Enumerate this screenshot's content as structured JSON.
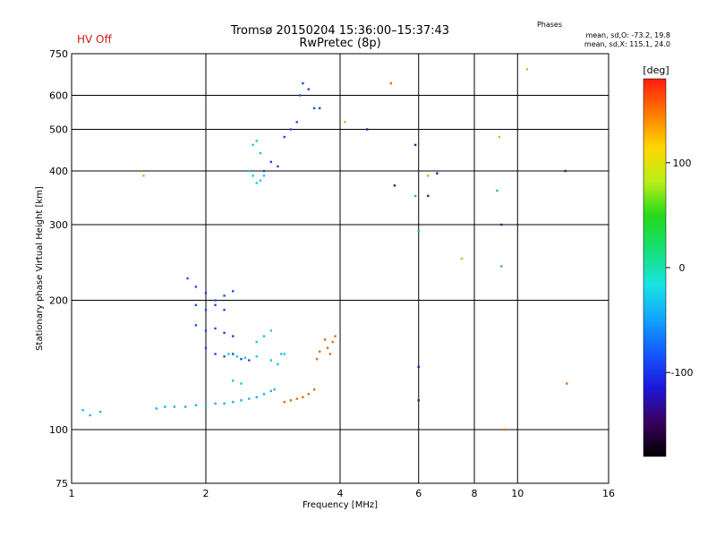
{
  "header": {
    "status": "HV Off",
    "title_line1": "Tromsø 20150204 15:36:00–15:37:43",
    "title_line2": "RwPretec (8p)",
    "phases_title": "Phases",
    "phases_o": "mean, sd,O: -73.2, 19.8",
    "phases_x": "mean, sd,X: 115.1, 24.0"
  },
  "colors": {
    "status": "#d11a1a",
    "grid": "#000000",
    "colormap": [
      "#000000",
      "#3b005e",
      "#1d17d9",
      "#1458ff",
      "#12a4ff",
      "#19e3e3",
      "#15e07a",
      "#24d91a",
      "#b8ee1a",
      "#ffd600",
      "#ff7a00",
      "#ff1b0e"
    ]
  },
  "chart_data": {
    "type": "scatter",
    "title": "Tromsø 20150204 15:36:00–15:37:43",
    "subtitle": "RwPretec (8p)",
    "xlabel": "Frequency [MHz]",
    "ylabel": "Stationary phase Virtual Height [km]",
    "x_scale": "log",
    "y_scale": "log",
    "xlim": [
      1,
      16
    ],
    "ylim": [
      75,
      750
    ],
    "x_ticks": [
      1,
      2,
      4,
      6,
      8,
      10,
      16
    ],
    "y_ticks": [
      75,
      100,
      200,
      300,
      400,
      500,
      600,
      750
    ],
    "grid_x": [
      2,
      4,
      6,
      8,
      10
    ],
    "grid_y": [
      100,
      200,
      300,
      400,
      500,
      600
    ],
    "colorbar": {
      "label": "[deg]",
      "ticks": [
        100,
        0,
        -100
      ],
      "range": [
        -180,
        180
      ]
    },
    "series": [
      {
        "name": "",
        "color": "#16b4ee",
        "points": [
          [
            1.06,
            111
          ],
          [
            1.1,
            108
          ],
          [
            1.16,
            110
          ],
          [
            1.55,
            112
          ],
          [
            1.62,
            113
          ],
          [
            1.7,
            113
          ],
          [
            1.8,
            113
          ],
          [
            1.9,
            114
          ],
          [
            2.0,
            114
          ],
          [
            2.1,
            115
          ],
          [
            2.2,
            115
          ],
          [
            2.3,
            116
          ],
          [
            2.4,
            117
          ],
          [
            2.5,
            118
          ],
          [
            2.6,
            119
          ],
          [
            2.7,
            121
          ],
          [
            2.8,
            123
          ],
          [
            2.85,
            124
          ]
        ]
      },
      {
        "name": "",
        "color": "#17c7e0",
        "points": [
          [
            2.5,
            400
          ],
          [
            2.55,
            390
          ],
          [
            2.6,
            375
          ],
          [
            2.65,
            380
          ],
          [
            2.7,
            390
          ],
          [
            2.55,
            460
          ],
          [
            2.6,
            470
          ],
          [
            2.65,
            440
          ],
          [
            2.25,
            150
          ],
          [
            2.35,
            148
          ],
          [
            2.45,
            147
          ],
          [
            2.6,
            148
          ],
          [
            2.8,
            145
          ],
          [
            2.9,
            142
          ],
          [
            3.0,
            150
          ],
          [
            2.6,
            160
          ],
          [
            2.7,
            165
          ],
          [
            2.8,
            170
          ],
          [
            2.95,
            150
          ],
          [
            2.3,
            130
          ],
          [
            2.4,
            128
          ]
        ]
      },
      {
        "name": "",
        "color": "#2147e3",
        "points": [
          [
            1.82,
            225
          ],
          [
            1.9,
            215
          ],
          [
            2.0,
            208
          ],
          [
            2.1,
            200
          ],
          [
            2.2,
            205
          ],
          [
            2.3,
            210
          ],
          [
            1.9,
            195
          ],
          [
            2.0,
            190
          ],
          [
            2.1,
            195
          ],
          [
            2.2,
            190
          ],
          [
            1.9,
            175
          ],
          [
            2.0,
            170
          ],
          [
            2.1,
            172
          ],
          [
            2.2,
            168
          ],
          [
            2.3,
            165
          ],
          [
            2.0,
            155
          ],
          [
            2.1,
            150
          ],
          [
            2.2,
            148
          ],
          [
            2.3,
            150
          ],
          [
            2.4,
            146
          ],
          [
            2.5,
            145
          ],
          [
            2.7,
            400
          ],
          [
            2.8,
            420
          ],
          [
            2.9,
            410
          ],
          [
            3.0,
            480
          ],
          [
            3.1,
            500
          ],
          [
            3.2,
            520
          ],
          [
            3.25,
            600
          ],
          [
            3.3,
            640
          ],
          [
            3.4,
            620
          ],
          [
            3.5,
            560
          ],
          [
            3.6,
            560
          ]
        ]
      },
      {
        "name": "",
        "color": "#e06a12",
        "points": [
          [
            3.0,
            116
          ],
          [
            3.1,
            117
          ],
          [
            3.2,
            118
          ],
          [
            3.3,
            119
          ],
          [
            3.4,
            121
          ],
          [
            3.5,
            124
          ],
          [
            3.55,
            146
          ],
          [
            3.6,
            152
          ],
          [
            3.7,
            162
          ],
          [
            3.75,
            155
          ],
          [
            3.8,
            150
          ],
          [
            3.85,
            160
          ],
          [
            3.9,
            165
          ]
        ]
      },
      {
        "name": "",
        "color": "#d4b81a",
        "points": [
          [
            1.45,
            390
          ],
          [
            4.1,
            520
          ],
          [
            6.3,
            390
          ],
          [
            7.5,
            250
          ],
          [
            9.1,
            480
          ],
          [
            10.5,
            690
          ]
        ]
      },
      {
        "name": "",
        "color": "#1a2a90",
        "points": [
          [
            4.6,
            500
          ],
          [
            5.3,
            370
          ],
          [
            5.9,
            460
          ],
          [
            6.0,
            140
          ],
          [
            6.0,
            117
          ],
          [
            6.3,
            350
          ],
          [
            6.6,
            395
          ],
          [
            9.2,
            300
          ],
          [
            12.8,
            400
          ]
        ]
      },
      {
        "name": "",
        "color": "#33c050",
        "points": [
          [
            5.9,
            350
          ],
          [
            6.0,
            290
          ],
          [
            9.0,
            360
          ],
          [
            9.2,
            240
          ]
        ]
      },
      {
        "name": "",
        "color": "#e06a12",
        "points": [
          [
            5.2,
            640
          ],
          [
            9.4,
            100
          ],
          [
            12.9,
            128
          ]
        ]
      }
    ]
  }
}
